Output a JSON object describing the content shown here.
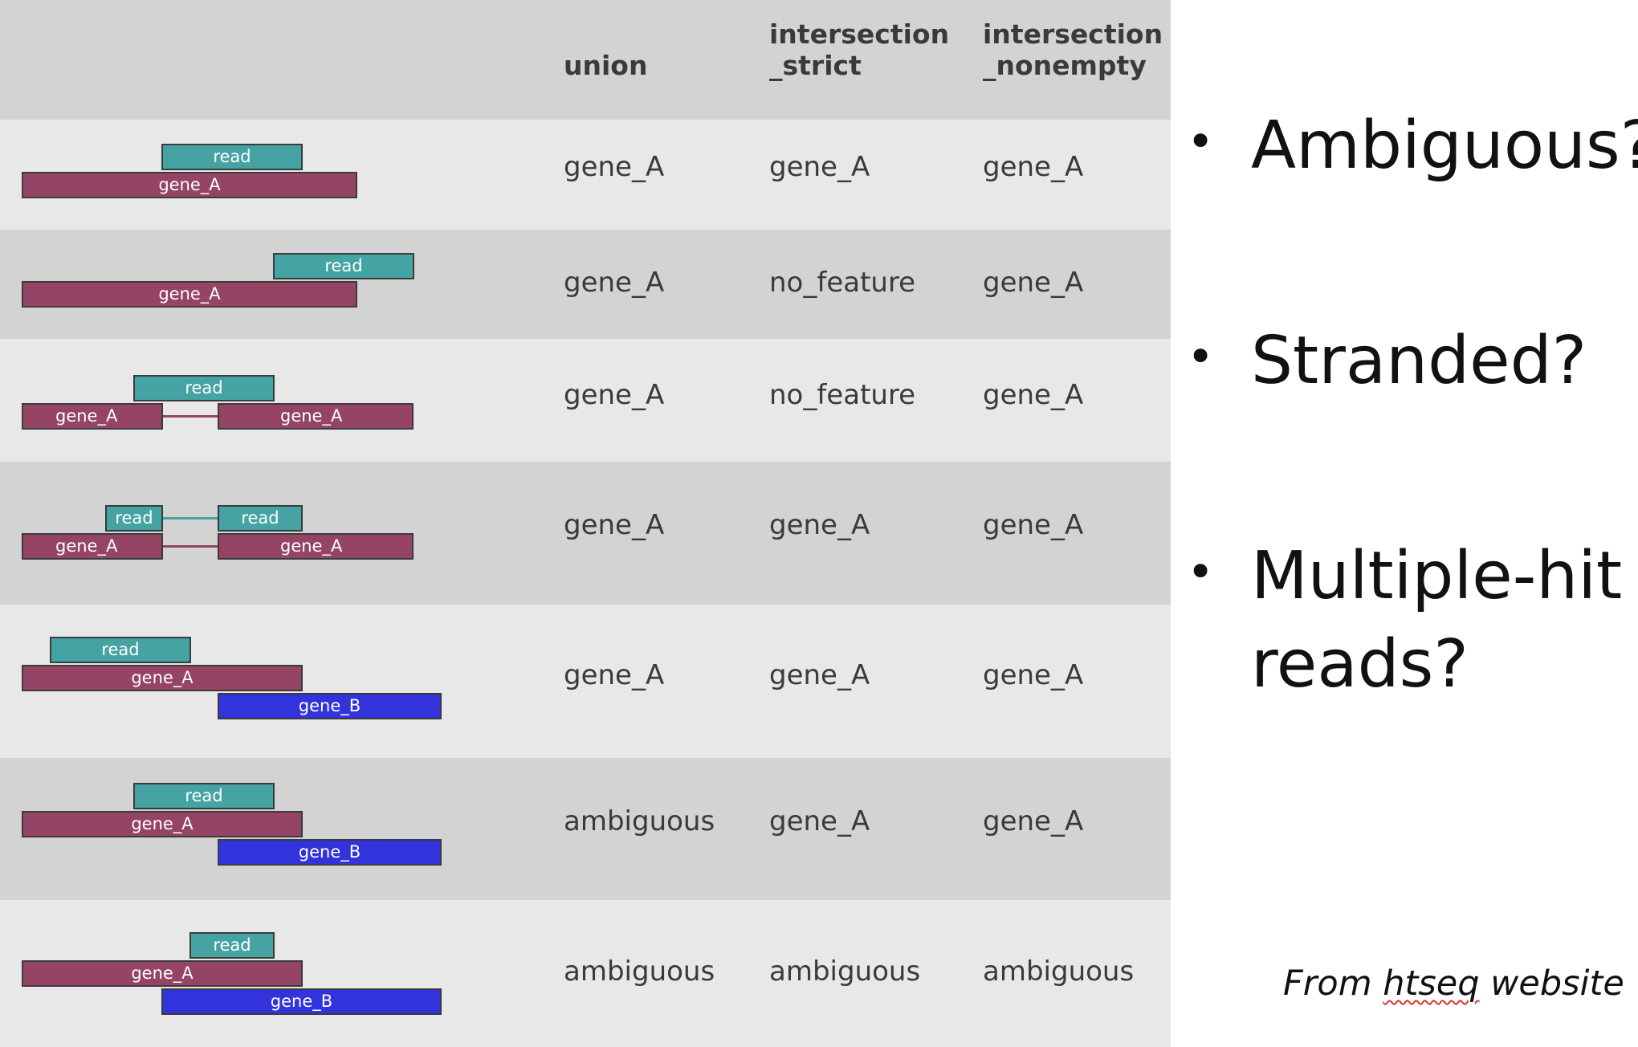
{
  "columns": [
    "union",
    "intersection\n_strict",
    "intersection\n_nonempty"
  ],
  "rows": [
    {
      "union": "gene_A",
      "intersection_strict": "gene_A",
      "intersection_nonempty": "gene_A",
      "diagram_labels": {
        "read1": "read",
        "gene1": "gene_A"
      }
    },
    {
      "union": "gene_A",
      "intersection_strict": "no_feature",
      "intersection_nonempty": "gene_A",
      "diagram_labels": {
        "read1": "read",
        "gene1": "gene_A"
      }
    },
    {
      "union": "gene_A",
      "intersection_strict": "no_feature",
      "intersection_nonempty": "gene_A",
      "diagram_labels": {
        "read1": "read",
        "gene1": "gene_A",
        "gene2": "gene_A"
      }
    },
    {
      "union": "gene_A",
      "intersection_strict": "gene_A",
      "intersection_nonempty": "gene_A",
      "diagram_labels": {
        "read1": "read",
        "read2": "read",
        "gene1": "gene_A",
        "gene2": "gene_A"
      }
    },
    {
      "union": "gene_A",
      "intersection_strict": "gene_A",
      "intersection_nonempty": "gene_A",
      "diagram_labels": {
        "read1": "read",
        "gene1": "gene_A",
        "geneB": "gene_B"
      }
    },
    {
      "union": "ambiguous",
      "intersection_strict": "gene_A",
      "intersection_nonempty": "gene_A",
      "diagram_labels": {
        "read1": "read",
        "gene1": "gene_A",
        "geneB": "gene_B"
      }
    },
    {
      "union": "ambiguous",
      "intersection_strict": "ambiguous",
      "intersection_nonempty": "ambiguous",
      "diagram_labels": {
        "read1": "read",
        "gene1": "gene_A",
        "geneB": "gene_B"
      }
    }
  ],
  "bullets": [
    "Ambiguous?",
    "Stranded?",
    "Multiple-hit reads?"
  ],
  "bullet_symbol": "•",
  "source_note": {
    "prefix": "From ",
    "link": "htseq",
    "suffix": " website"
  },
  "colors": {
    "read": "#45a3a3",
    "gene_A": "#954466",
    "gene_B": "#3333dd",
    "row_light": "#e8e8e8",
    "row_dark": "#d3d3d3"
  }
}
